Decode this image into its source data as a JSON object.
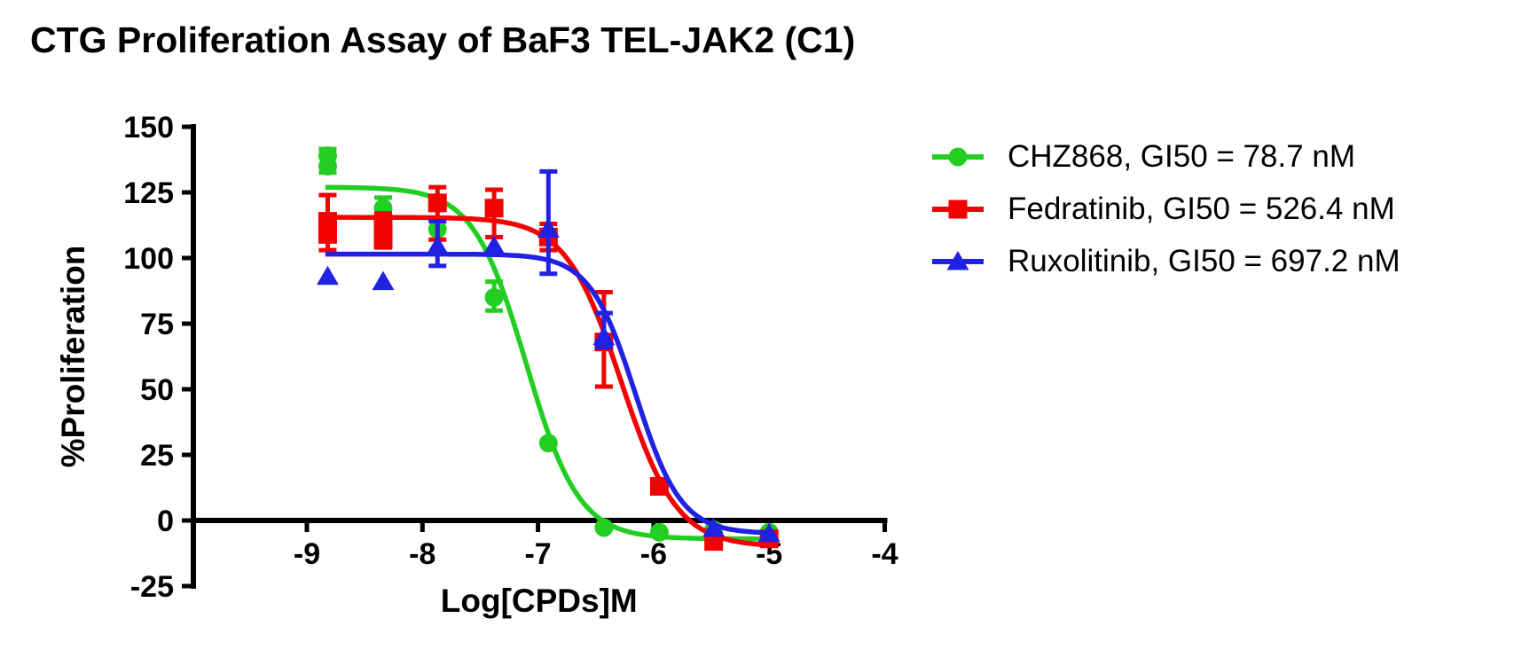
{
  "page": {
    "background": "#FFFFFF"
  },
  "chart_data": {
    "type": "scatter",
    "title": "CTG Proliferation Assay of BaF3 TEL-JAK2 (C1)",
    "xlabel": "Log[CPDs]M",
    "ylabel": "%Proliferation",
    "xlim": [
      -9.98,
      -4
    ],
    "ylim": [
      -25,
      150
    ],
    "x_ticks": [
      -9,
      -8,
      -7,
      -6,
      -5,
      -4
    ],
    "y_ticks": [
      150,
      125,
      100,
      75,
      50,
      25,
      0,
      -25
    ],
    "grid": false,
    "legend_position": "right-outside",
    "axis_color": "#000000",
    "series": [
      {
        "name": "CHZ868",
        "legend_label": "CHZ868, GI50 = 78.7 nM",
        "gi50_nM": 78.7,
        "color": "#22CE22",
        "marker": "circle",
        "points": [
          {
            "x": -8.82,
            "y": 139,
            "err_low": 132.5,
            "err_high": 141.5
          },
          {
            "x": -8.82,
            "y": 135
          },
          {
            "x": -8.34,
            "y": 119,
            "err_low": 115,
            "err_high": 123
          },
          {
            "x": -7.87,
            "y": 111
          },
          {
            "x": -7.38,
            "y": 85,
            "err_low": 80,
            "err_high": 91
          },
          {
            "x": -6.91,
            "y": 29.5
          },
          {
            "x": -6.43,
            "y": -2.7
          },
          {
            "x": -5.95,
            "y": -4.5
          },
          {
            "x": -5.48,
            "y": -3.5
          },
          {
            "x": -5.0,
            "y": -4.5
          }
        ],
        "fit": {
          "top": 127,
          "bottom": -7,
          "log_gi50": -7.104,
          "hill": 1.9,
          "x_start": -8.84,
          "x_end": -5.0
        }
      },
      {
        "name": "Fedratinib",
        "legend_label": "Fedratinib, GI50 = 526.4 nM",
        "gi50_nM": 526.4,
        "color": "#F50000",
        "marker": "square",
        "points": [
          {
            "x": -8.82,
            "y": 114,
            "err_low": 103,
            "err_high": 124
          },
          {
            "x": -8.82,
            "y": 109
          },
          {
            "x": -8.34,
            "y": 113,
            "err_low": 104,
            "err_high": 117
          },
          {
            "x": -8.34,
            "y": 107
          },
          {
            "x": -7.87,
            "y": 121,
            "err_low": 107,
            "err_high": 127
          },
          {
            "x": -7.38,
            "y": 119,
            "err_low": 108,
            "err_high": 126
          },
          {
            "x": -6.91,
            "y": 108,
            "err_low": 103,
            "err_high": 113
          },
          {
            "x": -6.43,
            "y": 68,
            "err_low": 51,
            "err_high": 87
          },
          {
            "x": -5.95,
            "y": 13
          },
          {
            "x": -5.48,
            "y": -8
          },
          {
            "x": -5.0,
            "y": -7
          }
        ],
        "fit": {
          "top": 115.5,
          "bottom": -10,
          "log_gi50": -6.279,
          "hill": 1.8,
          "x_start": -8.84,
          "x_end": -5.0
        }
      },
      {
        "name": "Ruxolitinib",
        "legend_label": "Ruxolitinib, GI50 = 697.2 nM",
        "gi50_nM": 697.2,
        "color": "#2121E3",
        "marker": "triangle",
        "points": [
          {
            "x": -8.82,
            "y": 93
          },
          {
            "x": -8.34,
            "y": 91
          },
          {
            "x": -7.87,
            "y": 104.5,
            "err_low": 97,
            "err_high": 114
          },
          {
            "x": -7.38,
            "y": 104.5
          },
          {
            "x": -6.91,
            "y": 111,
            "err_low": 94,
            "err_high": 133
          },
          {
            "x": -6.43,
            "y": 70,
            "err_low": 66,
            "err_high": 79
          },
          {
            "x": -5.48,
            "y": -3
          },
          {
            "x": -5.0,
            "y": -5
          }
        ],
        "fit": {
          "top": 101.5,
          "bottom": -5,
          "log_gi50": -6.157,
          "hill": 2.2,
          "x_start": -8.84,
          "x_end": -5.0
        }
      }
    ]
  }
}
